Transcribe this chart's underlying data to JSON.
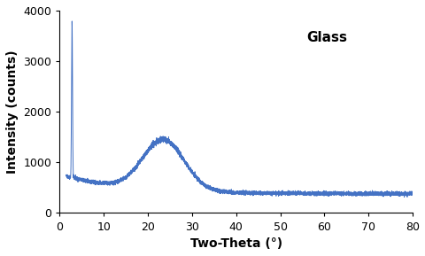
{
  "title": "Glass",
  "xlabel": "Two-Theta (°)",
  "ylabel": "Intensity (counts)",
  "xlim": [
    0,
    80
  ],
  "ylim": [
    0,
    4000
  ],
  "xticks": [
    0,
    10,
    20,
    30,
    40,
    50,
    60,
    70,
    80
  ],
  "yticks": [
    0,
    1000,
    2000,
    3000,
    4000
  ],
  "line_color": "#4472C4",
  "line_width": 0.7,
  "background_color": "#ffffff",
  "title_fontsize": 11,
  "axis_label_fontsize": 10,
  "tick_fontsize": 9,
  "noise_seed": 42
}
